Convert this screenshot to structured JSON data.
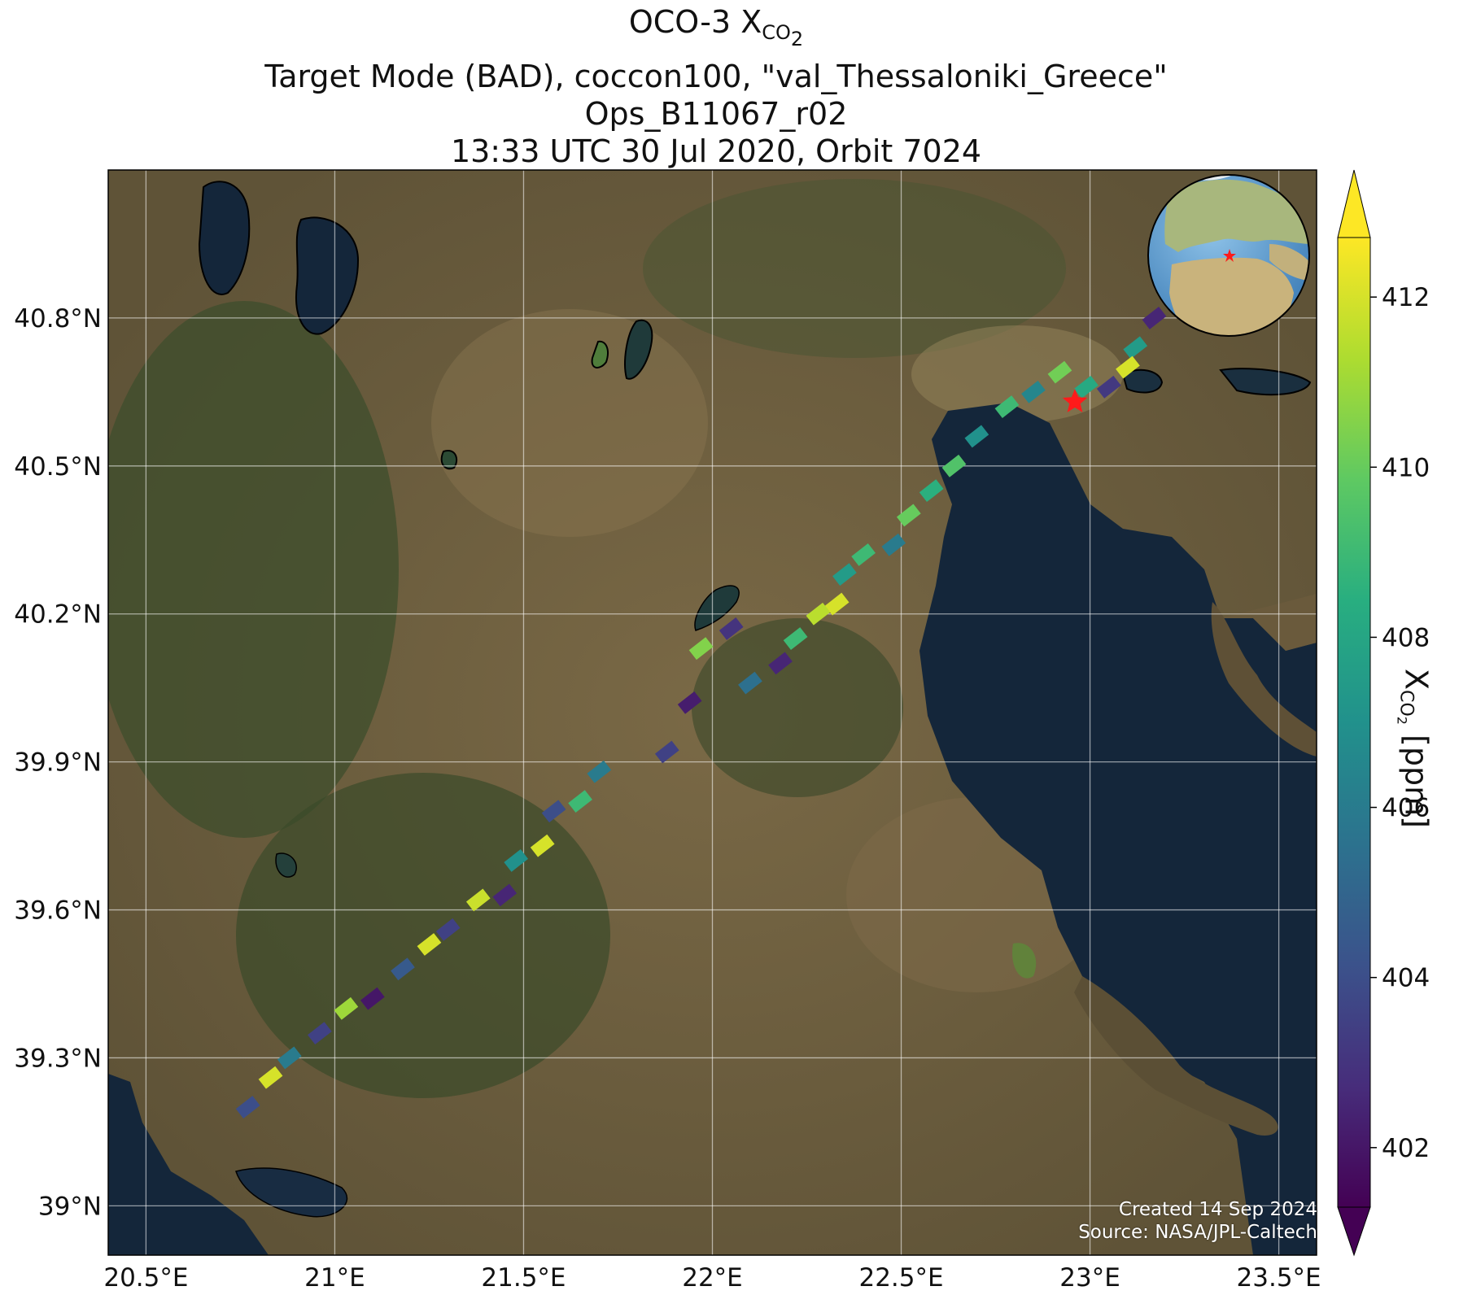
{
  "title": {
    "line1_prefix": "OCO-3 X",
    "line1_sub": "CO",
    "line1_subsub": "2",
    "line2": "Target Mode (BAD), coccon100, \"val_Thessaloniki_Greece\"",
    "line3": "Ops_B11067_r02",
    "line4": "13:33 UTC 30 Jul 2020, Orbit 7024"
  },
  "credit": {
    "created": "Created 14 Sep 2024",
    "source": "Source: NASA/JPL-Caltech"
  },
  "colorbar": {
    "label_prefix": "X",
    "label_sub": "CO",
    "label_subsub": "2",
    "label_units": " [ppm]",
    "min": 401.3,
    "max": 412.7,
    "ticks": [
      "402",
      "404",
      "406",
      "408",
      "410",
      "412"
    ],
    "colormap": "viridis"
  },
  "map": {
    "lon_ticks": [
      "20.5°E",
      "21°E",
      "21.5°E",
      "22°E",
      "22.5°E",
      "23°E",
      "23.5°E"
    ],
    "lat_ticks": [
      "39°N",
      "39.3°N",
      "39.6°N",
      "39.9°N",
      "40.2°N",
      "40.5°N",
      "40.8°N"
    ],
    "lon_range": [
      20.4,
      23.6
    ],
    "lat_range": [
      38.9,
      41.1
    ],
    "target": {
      "name": "val_Thessaloniki_Greece",
      "lon": 22.96,
      "lat": 40.63,
      "marker": "red-star"
    },
    "colors": {
      "sea": "#14263a",
      "land": "#6d5e3f",
      "forest": "#3c4a2b",
      "target": "#ff1a1a"
    }
  },
  "chart_data": {
    "type": "scatter",
    "xlabel": "",
    "ylabel": "",
    "xlim": [
      20.4,
      23.6
    ],
    "ylim": [
      38.9,
      41.1
    ],
    "value_units": "ppm",
    "soundings": [
      {
        "lon": 23.17,
        "lat": 40.8,
        "xco2": 402.5
      },
      {
        "lon": 23.12,
        "lat": 40.74,
        "xco2": 407.5
      },
      {
        "lon": 23.1,
        "lat": 40.7,
        "xco2": 412.0
      },
      {
        "lon": 23.05,
        "lat": 40.66,
        "xco2": 403.2
      },
      {
        "lon": 22.99,
        "lat": 40.66,
        "xco2": 408.2
      },
      {
        "lon": 22.92,
        "lat": 40.69,
        "xco2": 410.2
      },
      {
        "lon": 22.85,
        "lat": 40.65,
        "xco2": 406.5
      },
      {
        "lon": 22.78,
        "lat": 40.62,
        "xco2": 409.0
      },
      {
        "lon": 22.7,
        "lat": 40.56,
        "xco2": 407.0
      },
      {
        "lon": 22.64,
        "lat": 40.5,
        "xco2": 409.5
      },
      {
        "lon": 22.58,
        "lat": 40.45,
        "xco2": 408.5
      },
      {
        "lon": 22.52,
        "lat": 40.4,
        "xco2": 410.0
      },
      {
        "lon": 22.48,
        "lat": 40.34,
        "xco2": 406.0
      },
      {
        "lon": 22.4,
        "lat": 40.32,
        "xco2": 409.0
      },
      {
        "lon": 22.35,
        "lat": 40.28,
        "xco2": 407.5
      },
      {
        "lon": 22.33,
        "lat": 40.22,
        "xco2": 412.0
      },
      {
        "lon": 22.28,
        "lat": 40.2,
        "xco2": 411.5
      },
      {
        "lon": 22.22,
        "lat": 40.15,
        "xco2": 409.0
      },
      {
        "lon": 22.18,
        "lat": 40.1,
        "xco2": 402.5
      },
      {
        "lon": 22.1,
        "lat": 40.06,
        "xco2": 405.5
      },
      {
        "lon": 22.05,
        "lat": 40.17,
        "xco2": 403.0
      },
      {
        "lon": 21.97,
        "lat": 40.13,
        "xco2": 410.5
      },
      {
        "lon": 21.94,
        "lat": 40.02,
        "xco2": 402.2
      },
      {
        "lon": 21.88,
        "lat": 39.92,
        "xco2": 403.5
      },
      {
        "lon": 21.7,
        "lat": 39.88,
        "xco2": 406.0
      },
      {
        "lon": 21.65,
        "lat": 39.82,
        "xco2": 409.0
      },
      {
        "lon": 21.58,
        "lat": 39.8,
        "xco2": 404.0
      },
      {
        "lon": 21.55,
        "lat": 39.73,
        "xco2": 412.0
      },
      {
        "lon": 21.48,
        "lat": 39.7,
        "xco2": 407.0
      },
      {
        "lon": 21.45,
        "lat": 39.63,
        "xco2": 402.5
      },
      {
        "lon": 21.38,
        "lat": 39.62,
        "xco2": 411.8
      },
      {
        "lon": 21.3,
        "lat": 39.56,
        "xco2": 403.5
      },
      {
        "lon": 21.25,
        "lat": 39.53,
        "xco2": 412.0
      },
      {
        "lon": 21.18,
        "lat": 39.48,
        "xco2": 404.5
      },
      {
        "lon": 21.1,
        "lat": 39.42,
        "xco2": 402.0
      },
      {
        "lon": 21.03,
        "lat": 39.4,
        "xco2": 411.0
      },
      {
        "lon": 20.96,
        "lat": 39.35,
        "xco2": 403.5
      },
      {
        "lon": 20.88,
        "lat": 39.3,
        "xco2": 406.0
      },
      {
        "lon": 20.83,
        "lat": 39.26,
        "xco2": 412.0
      },
      {
        "lon": 20.77,
        "lat": 39.2,
        "xco2": 404.0
      }
    ]
  }
}
